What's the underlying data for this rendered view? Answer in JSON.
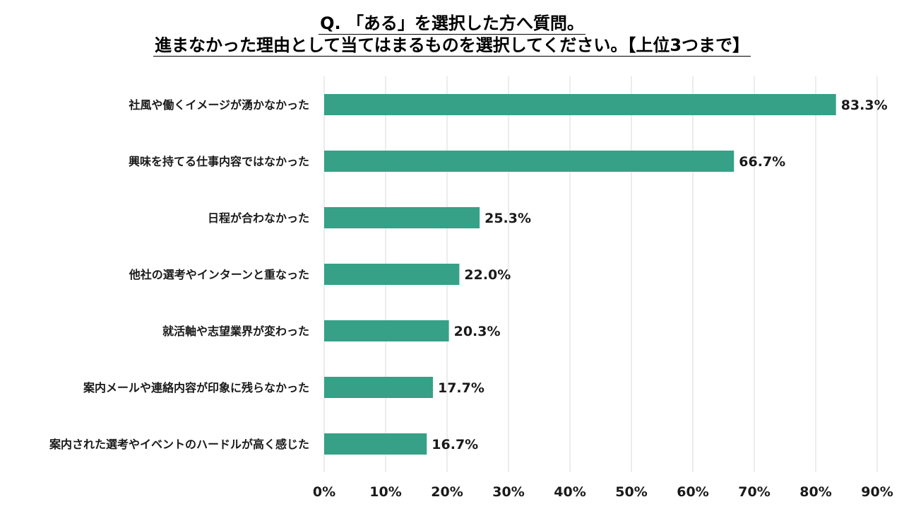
{
  "title": {
    "line1": "Q. 「ある」を選択した方へ質問。",
    "line2": "進まなかった理由として当てはまるものを選択してください。【上位3つまで】"
  },
  "chart_data": {
    "type": "bar",
    "orientation": "horizontal",
    "categories": [
      "社風や働くイメージが湧かなかった",
      "興味を持てる仕事内容ではなかった",
      "日程が合わなかった",
      "他社の選考やインターンと重なった",
      "就活軸や志望業界が変わった",
      "案内メールや連絡内容が印象に残らなかった",
      "案内された選考やイベントのハードルが高く感じた"
    ],
    "values": [
      83.3,
      66.7,
      25.3,
      22.0,
      20.3,
      17.7,
      16.7
    ],
    "value_labels": [
      "83.3%",
      "66.7%",
      "25.3%",
      "22.0%",
      "20.3%",
      "17.7%",
      "16.7%"
    ],
    "x_ticks": [
      0,
      10,
      20,
      30,
      40,
      50,
      60,
      70,
      80,
      90
    ],
    "x_tick_labels": [
      "0%",
      "10%",
      "20%",
      "30%",
      "40%",
      "50%",
      "60%",
      "70%",
      "80%",
      "90%"
    ],
    "xlim": [
      0,
      90
    ],
    "grid": true,
    "legend": "none",
    "bar_color": "#36a187",
    "grid_color": "#d9d9d9"
  }
}
